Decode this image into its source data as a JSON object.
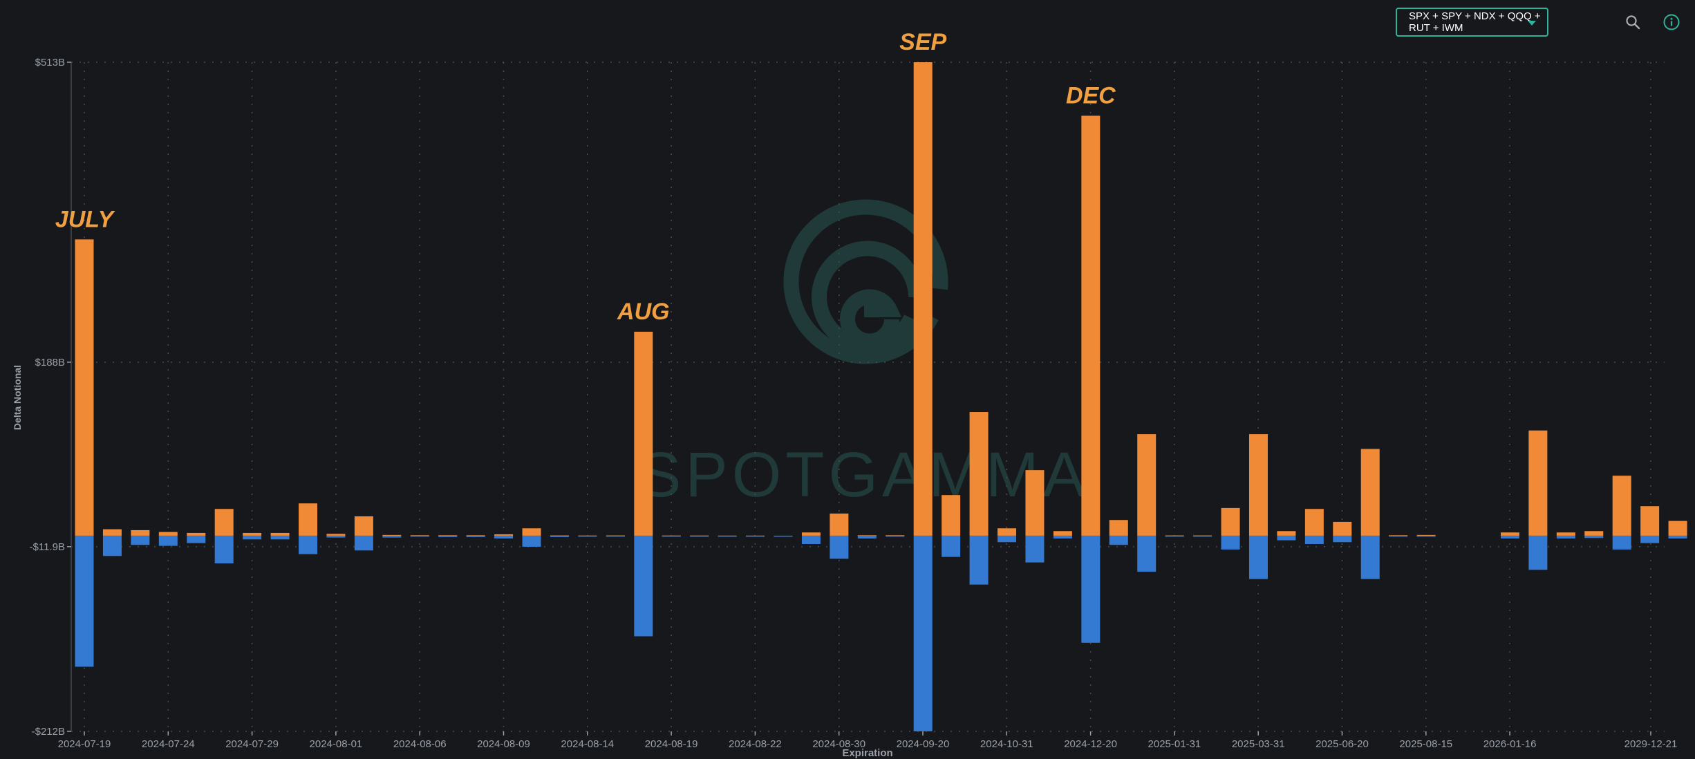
{
  "toolbar": {
    "symbol_select": "SPX + SPY + NDX + QQQ + RUT + IWM"
  },
  "colors": {
    "background": "#17181c",
    "positive": "#f08a36",
    "negative": "#3479d2",
    "annotation": "#f0a040",
    "accent": "#2fb39a",
    "axis_text": "#9aa0a8",
    "grid": "#4a4d55",
    "watermark": "#1f3a38"
  },
  "icons": [
    "chevron-down-icon",
    "search-icon",
    "info-icon"
  ],
  "watermark": "SPOTGAMMA",
  "chart_data": {
    "type": "bar",
    "stacked": true,
    "ylabel": "Delta Notional",
    "xlabel": "Expiration",
    "y_unit": "B",
    "ylim": [
      -212,
      513
    ],
    "ytick_labels": [
      "$513B",
      "$188B",
      "-$11.9B",
      "-$212B"
    ],
    "ytick_values": [
      513,
      188,
      -11.9,
      -212
    ],
    "x_tick_labels": [
      "2024-07-19",
      "2024-07-24",
      "2024-07-29",
      "2024-08-01",
      "2024-08-06",
      "2024-08-09",
      "2024-08-14",
      "2024-08-19",
      "2024-08-22",
      "2024-08-30",
      "2024-09-20",
      "2024-10-31",
      "2024-12-20",
      "2025-01-31",
      "2025-03-31",
      "2025-06-20",
      "2025-08-15",
      "2026-01-16",
      "2029-12-21"
    ],
    "grid": true,
    "annotations": [
      {
        "text": "JULY",
        "bar_index": 0
      },
      {
        "text": "AUG",
        "bar_index": 20
      },
      {
        "text": "SEP",
        "bar_index": 30
      },
      {
        "text": "DEC",
        "bar_index": 36
      }
    ],
    "series": [
      {
        "name": "",
        "color": "#f08a36",
        "values": [
          321,
          7,
          6,
          4,
          3,
          29,
          3,
          3,
          35,
          2,
          21,
          0.8,
          0.5,
          0.5,
          0.5,
          1.5,
          8,
          0.3,
          0.2,
          0.3,
          221,
          0.2,
          0.2,
          0.1,
          0.1,
          0,
          3.5,
          24,
          0.5,
          0.5,
          513,
          44,
          134,
          8,
          71,
          5,
          455,
          17,
          110,
          0.3,
          0.3,
          30,
          110,
          5,
          29,
          15,
          94,
          0.5,
          0.8,
          0,
          0,
          3.5,
          114,
          3.5,
          5,
          65,
          32,
          16,
          5
        ]
      },
      {
        "name": "",
        "color": "#3479d2",
        "values": [
          -142,
          -22,
          -10,
          -11,
          -8,
          -30,
          -4,
          -4,
          -20,
          -2,
          -16,
          -2,
          -1,
          -1.5,
          -1.5,
          -3,
          -12,
          -1.5,
          -0.8,
          -0.6,
          -109,
          -0.8,
          -0.6,
          -0.4,
          -0.4,
          -0.3,
          -9,
          -25,
          -3,
          -0.6,
          -212,
          -23,
          -53,
          -7,
          -29,
          -3,
          -116,
          -10,
          -39,
          -0.3,
          -0.3,
          -15,
          -47,
          -5,
          -9,
          -7,
          -47,
          -0.8,
          -0.5,
          0,
          0,
          -3,
          -37,
          -3,
          -2.5,
          -15,
          -8,
          -3,
          -1
        ]
      }
    ]
  }
}
